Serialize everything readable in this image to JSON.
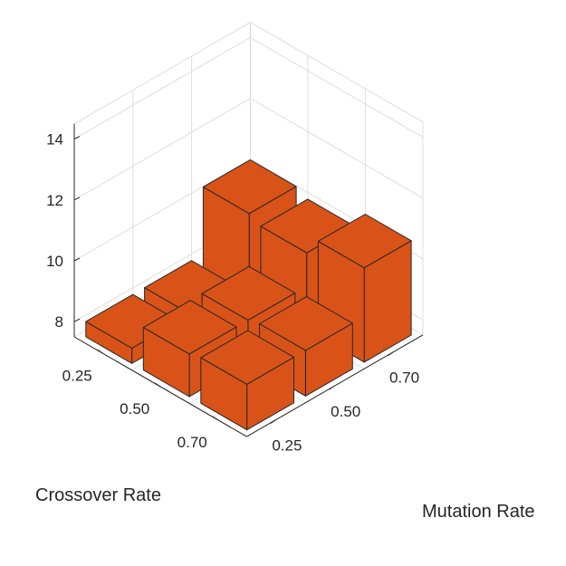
{
  "chart_data": {
    "type": "bar3d",
    "xlabel": "Mutation Rate",
    "ylabel": "Crossover Rate",
    "zlabel": "",
    "x_categories": [
      "0.25",
      "0.50",
      "0.70"
    ],
    "y_categories": [
      "0.25",
      "0.50",
      "0.70"
    ],
    "z_ticks": [
      8,
      10,
      12,
      14
    ],
    "zlim": [
      7.5,
      14.5
    ],
    "grid": true,
    "bar_color": "#d95319",
    "values": [
      [
        8.0,
        8.0,
        10.2
      ],
      [
        8.9,
        8.9,
        10.0
      ],
      [
        9.0,
        9.0,
        10.6
      ]
    ]
  }
}
